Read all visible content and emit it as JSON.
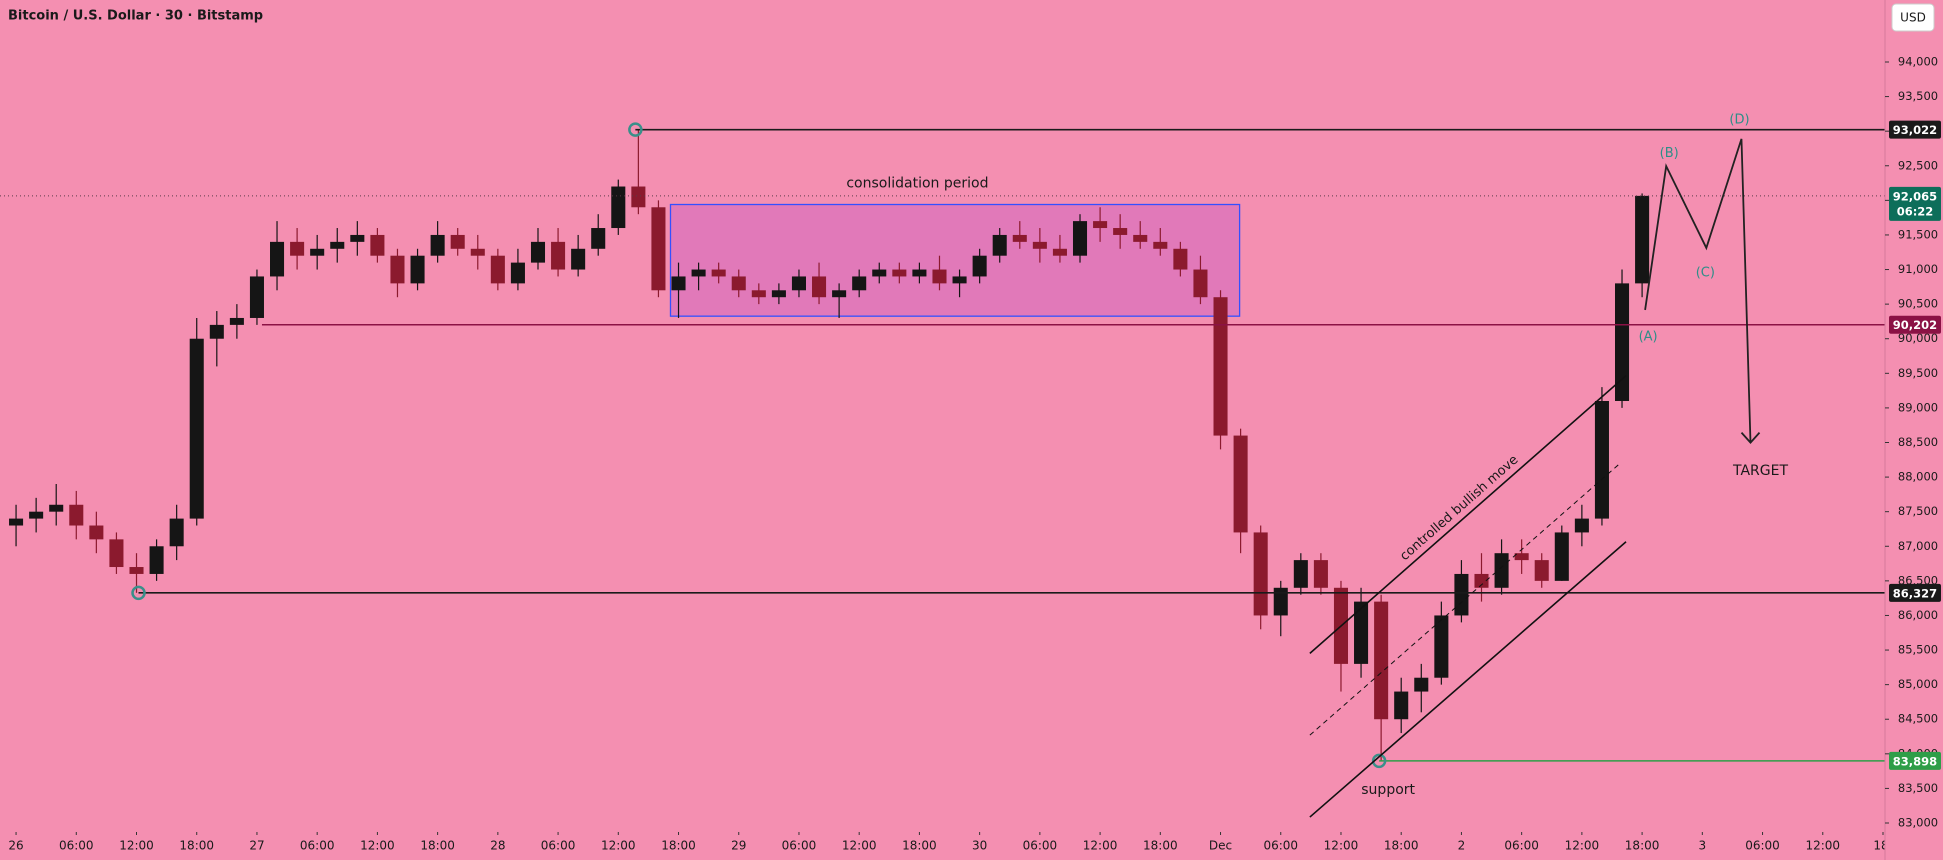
{
  "chart_data": {
    "type": "candlestick",
    "title": "Bitcoin / U.S. Dollar · 30 · Bitstamp",
    "currency": "USD",
    "xlim": [
      -1.6,
      186.2
    ],
    "ylim": [
      82870,
      94896
    ],
    "xticks": [
      {
        "value": 0,
        "label": "26"
      },
      {
        "value": 6,
        "label": "06:00"
      },
      {
        "value": 12,
        "label": "12:00"
      },
      {
        "value": 18,
        "label": "18:00"
      },
      {
        "value": 24,
        "label": "27"
      },
      {
        "value": 30,
        "label": "06:00"
      },
      {
        "value": 36,
        "label": "12:00"
      },
      {
        "value": 42,
        "label": "18:00"
      },
      {
        "value": 48,
        "label": "28"
      },
      {
        "value": 54,
        "label": "06:00"
      },
      {
        "value": 60,
        "label": "12:00"
      },
      {
        "value": 66,
        "label": "18:00"
      },
      {
        "value": 72,
        "label": "29"
      },
      {
        "value": 78,
        "label": "06:00"
      },
      {
        "value": 84,
        "label": "12:00"
      },
      {
        "value": 90,
        "label": "18:00"
      },
      {
        "value": 96,
        "label": "30"
      },
      {
        "value": 102,
        "label": "06:00"
      },
      {
        "value": 108,
        "label": "12:00"
      },
      {
        "value": 114,
        "label": "18:00"
      },
      {
        "value": 120,
        "label": "Dec"
      },
      {
        "value": 126,
        "label": "06:00"
      },
      {
        "value": 132,
        "label": "12:00"
      },
      {
        "value": 138,
        "label": "18:00"
      },
      {
        "value": 144,
        "label": "2"
      },
      {
        "value": 150,
        "label": "06:00"
      },
      {
        "value": 156,
        "label": "12:00"
      },
      {
        "value": 162,
        "label": "18:00"
      },
      {
        "value": 168,
        "label": "3"
      },
      {
        "value": 174,
        "label": "06:00"
      },
      {
        "value": 180,
        "label": "12:00"
      },
      {
        "value": 186,
        "label": "18:"
      }
    ],
    "yticks": [
      {
        "value": 83000,
        "label": "83,000"
      },
      {
        "value": 83500,
        "label": "83,500"
      },
      {
        "value": 84000,
        "label": "84,000"
      },
      {
        "value": 84500,
        "label": "84,500"
      },
      {
        "value": 85000,
        "label": "85,000"
      },
      {
        "value": 85500,
        "label": "85,500"
      },
      {
        "value": 86000,
        "label": "86,000"
      },
      {
        "value": 86500,
        "label": "86,500"
      },
      {
        "value": 87000,
        "label": "87,000"
      },
      {
        "value": 87500,
        "label": "87,500"
      },
      {
        "value": 88000,
        "label": "88,000"
      },
      {
        "value": 88500,
        "label": "88,500"
      },
      {
        "value": 89000,
        "label": "89,000"
      },
      {
        "value": 89500,
        "label": "89,500"
      },
      {
        "value": 90000,
        "label": "90,000"
      },
      {
        "value": 90500,
        "label": "90,500"
      },
      {
        "value": 91000,
        "label": "91,000"
      },
      {
        "value": 91500,
        "label": "91,500"
      },
      {
        "value": 92000,
        "label": "92,000"
      },
      {
        "value": 92500,
        "label": "92,500"
      },
      {
        "value": 93000,
        "label": "93,000"
      },
      {
        "value": 93500,
        "label": "93,500"
      },
      {
        "value": 94000,
        "label": "94,000"
      }
    ],
    "grid": false,
    "up_color": "#151515",
    "down_color": "#8b1a2e",
    "series": {
      "x": [
        0,
        2,
        4,
        6,
        8,
        10,
        12,
        14,
        16,
        18,
        20,
        22,
        24,
        26,
        28,
        30,
        32,
        34,
        36,
        38,
        40,
        42,
        44,
        46,
        48,
        50,
        52,
        54,
        56,
        58,
        60,
        62,
        64,
        66,
        68,
        70,
        72,
        74,
        76,
        78,
        80,
        82,
        84,
        86,
        88,
        90,
        92,
        94,
        96,
        98,
        100,
        102,
        104,
        106,
        108,
        110,
        112,
        114,
        116,
        118,
        120,
        122,
        124,
        126,
        128,
        130,
        132,
        134,
        136,
        138,
        140,
        142,
        144,
        146,
        148,
        150,
        152,
        154,
        156,
        158,
        160,
        162
      ],
      "open": [
        87300,
        87400,
        87500,
        87600,
        87300,
        87100,
        86700,
        86600,
        87000,
        87400,
        90000,
        90200,
        90300,
        90900,
        91400,
        91200,
        91300,
        91400,
        91500,
        91200,
        90800,
        91200,
        91500,
        91300,
        91200,
        90800,
        91100,
        91400,
        91000,
        91300,
        91600,
        92200,
        91900,
        90700,
        90900,
        91000,
        90900,
        90700,
        90600,
        90700,
        90900,
        90600,
        90700,
        90900,
        91000,
        90900,
        91000,
        90800,
        90900,
        91200,
        91500,
        91400,
        91300,
        91200,
        91700,
        91600,
        91500,
        91400,
        91300,
        91000,
        90600,
        88600,
        87200,
        86000,
        86400,
        86800,
        86400,
        85300,
        86200,
        84500,
        84900,
        85100,
        86000,
        86600,
        86400,
        86900,
        86800,
        86500,
        87200,
        87400,
        89100,
        90800
      ],
      "high": [
        87600,
        87700,
        87900,
        87800,
        87500,
        87200,
        86900,
        87100,
        87600,
        90300,
        90400,
        90500,
        91000,
        91700,
        91600,
        91500,
        91600,
        91700,
        91600,
        91300,
        91300,
        91700,
        91600,
        91500,
        91300,
        91300,
        91600,
        91600,
        91500,
        91800,
        92300,
        93022,
        92000,
        91100,
        91100,
        91100,
        91000,
        90800,
        90800,
        91000,
        91100,
        90800,
        91000,
        91100,
        91100,
        91100,
        91200,
        91000,
        91300,
        91600,
        91700,
        91600,
        91500,
        91800,
        91900,
        91800,
        91700,
        91600,
        91400,
        91200,
        90700,
        88700,
        87300,
        86500,
        86900,
        86900,
        86500,
        86400,
        86300,
        85100,
        85300,
        86200,
        86800,
        86900,
        87100,
        87100,
        86900,
        87300,
        87600,
        89300,
        91000,
        92100
      ],
      "low": [
        87000,
        87200,
        87300,
        87100,
        86900,
        86600,
        86327,
        86500,
        86800,
        87300,
        89600,
        90000,
        90200,
        90700,
        91000,
        91000,
        91100,
        91200,
        91100,
        90600,
        90700,
        91100,
        91200,
        91000,
        90700,
        90700,
        91000,
        90900,
        90900,
        91200,
        91500,
        91800,
        90600,
        90300,
        90700,
        90800,
        90600,
        90500,
        90500,
        90600,
        90500,
        90300,
        90600,
        90800,
        90800,
        90800,
        90700,
        90600,
        90800,
        91100,
        91300,
        91100,
        91100,
        91100,
        91400,
        91300,
        91300,
        91200,
        90900,
        90500,
        88400,
        86900,
        85800,
        85700,
        86300,
        86300,
        84900,
        85100,
        83898,
        84300,
        84600,
        85000,
        85900,
        86200,
        86300,
        86600,
        86400,
        86500,
        87000,
        87300,
        89000,
        90600
      ],
      "close": [
        87400,
        87500,
        87600,
        87300,
        87100,
        86700,
        86600,
        87000,
        87400,
        90000,
        90200,
        90300,
        90900,
        91400,
        91200,
        91300,
        91400,
        91500,
        91200,
        90800,
        91200,
        91500,
        91300,
        91200,
        90800,
        91100,
        91400,
        91000,
        91300,
        91600,
        92200,
        91900,
        90700,
        90900,
        91000,
        90900,
        90700,
        90600,
        90700,
        90900,
        90600,
        90700,
        90900,
        91000,
        90900,
        91000,
        90800,
        90900,
        91200,
        91500,
        91400,
        91300,
        91200,
        91700,
        91600,
        91500,
        91400,
        91300,
        91000,
        90600,
        88600,
        87200,
        86000,
        86400,
        86800,
        86400,
        85300,
        86200,
        84500,
        84900,
        85100,
        86000,
        86600,
        86400,
        86900,
        86800,
        86500,
        87200,
        87400,
        89100,
        90800,
        92065
      ]
    },
    "price_levels": [
      {
        "value": 93022,
        "label": "93,022",
        "color": "#1a1a1a"
      },
      {
        "value": 90202,
        "label": "90,202",
        "color": "#8b1245"
      },
      {
        "value": 86327,
        "label": "86,327",
        "color": "#1a1a1a"
      },
      {
        "value": 83898,
        "label": "83,898",
        "color": "#2e9e48"
      }
    ],
    "last_price": {
      "value": 92065,
      "label": "92,065",
      "countdown": "06:22",
      "color": "#0d6e5a"
    },
    "annotations": [
      "consolidation period",
      "controlled bullish move",
      "(A)",
      "(B)",
      "(C)",
      "(D)",
      "TARGET",
      "support"
    ]
  }
}
